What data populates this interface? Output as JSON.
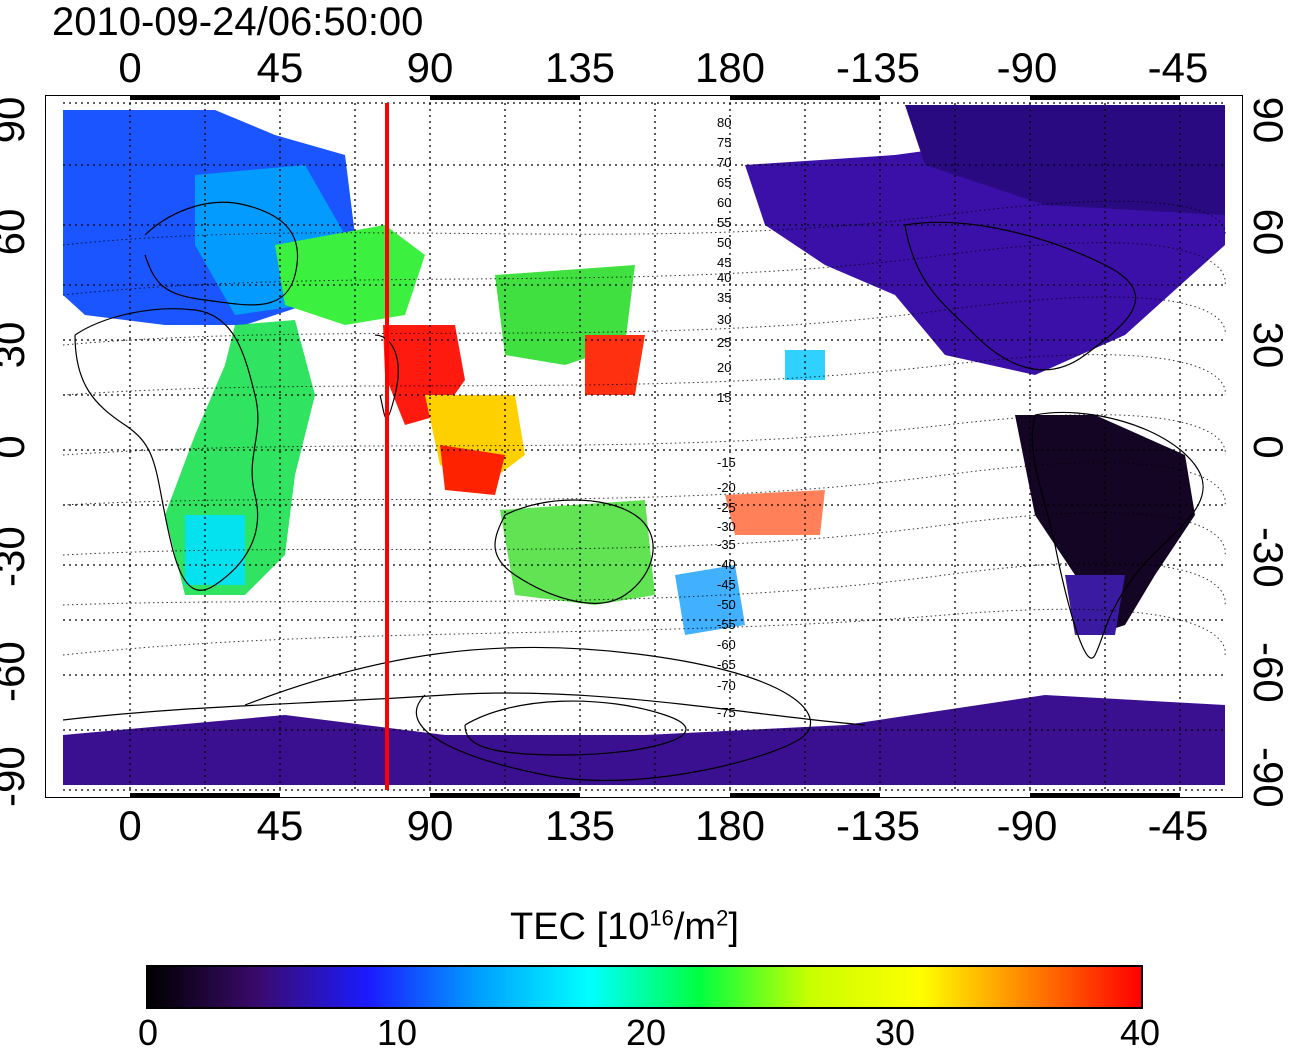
{
  "timestamp": "2010-09-24/06:50:00",
  "map": {
    "lon_ticks": [
      "0",
      "45",
      "90",
      "135",
      "180",
      "-135",
      "-90",
      "-45"
    ],
    "lat_ticks": [
      "90",
      "60",
      "30",
      "0",
      "-30",
      "-60",
      "-90"
    ],
    "magnetic_contours": [
      "80",
      "75",
      "70",
      "65",
      "60",
      "55",
      "50",
      "45",
      "40",
      "35",
      "30",
      "25",
      "20",
      "15",
      "-15",
      "-20",
      "-25",
      "-30",
      "-35",
      "-40",
      "-45",
      "-50",
      "-55",
      "-60",
      "-65",
      "-70",
      "-75"
    ],
    "marker_line_color": "#ff0000"
  },
  "colorbar": {
    "title_prefix": "TEC  [10",
    "title_exp1": "16",
    "title_mid": "/m",
    "title_exp2": "2",
    "title_suffix": "]",
    "ticks": [
      "0",
      "10",
      "20",
      "30",
      "40"
    ],
    "colors": [
      "#000000",
      "#3a0a6e",
      "#1b1bff",
      "#00a0ff",
      "#00ffff",
      "#00ff40",
      "#c8ff00",
      "#ffff00",
      "#ff8000",
      "#ff0000"
    ]
  }
}
